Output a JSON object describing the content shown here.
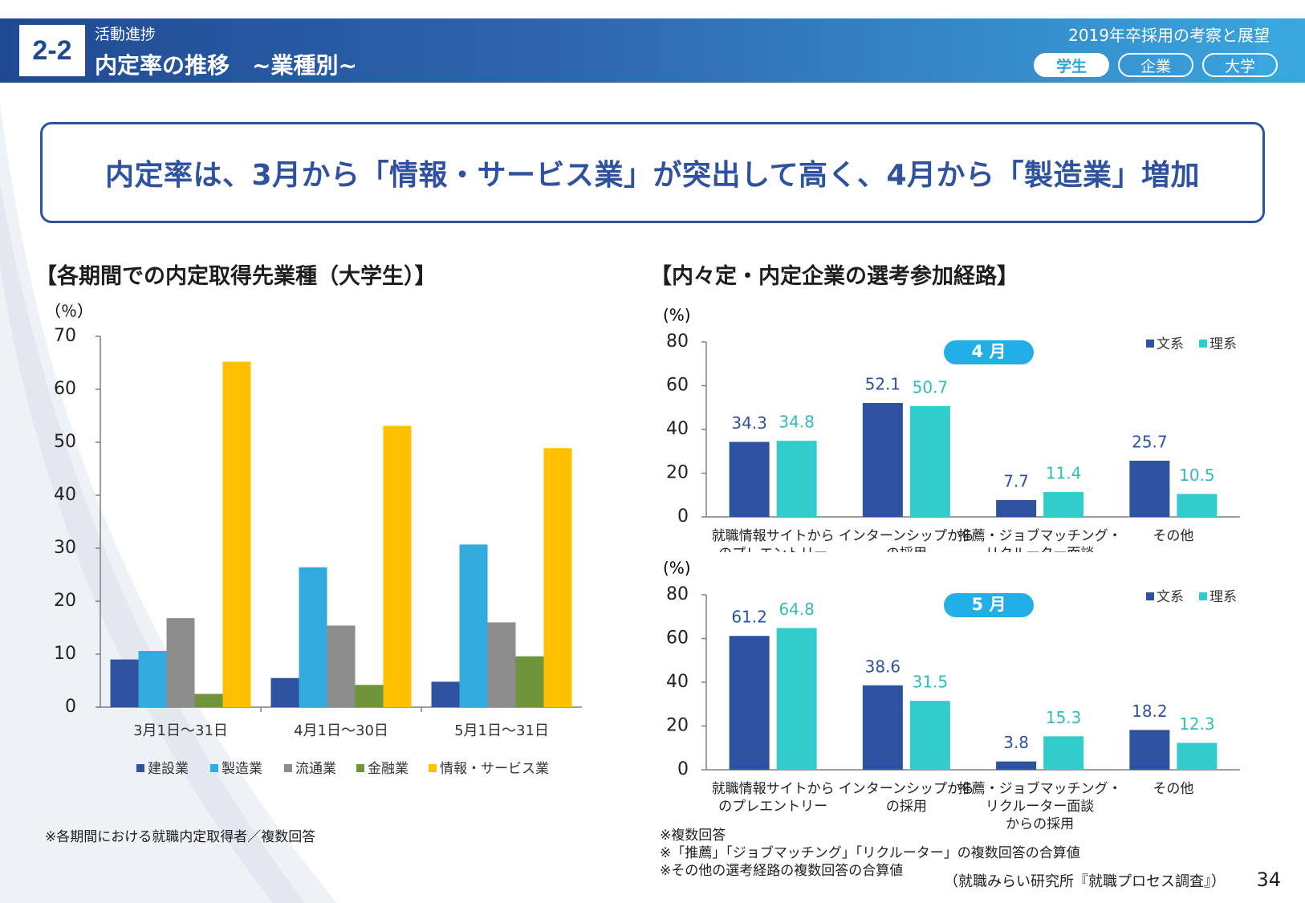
{
  "header": {
    "section_num": "2-2",
    "subtitle": "活動進捗",
    "title": "内定率の推移　~業種別~",
    "report": "2019年卒採用の考察と展望",
    "tabs": [
      "学生",
      "企業",
      "大学"
    ]
  },
  "headline": "内定率は、3月から「情報・サービス業」が突出して高く、4月から「製造業」増加",
  "left_chart_title": "【各期間での内定取得先業種（大学生）】",
  "right_chart_title": "【内々定・内定企業の選考参加経路】",
  "left_note": "※各期間における就職内定取得者／複数回答",
  "right_notes": [
    "※複数回答",
    "※「推薦」「ジョブマッチング」「リクルーター」の複数回答の合算値",
    "※その他の選考経路の複数回答の合算値"
  ],
  "source": "（就職みらい研究所『就職プロセス調査』）",
  "page_number": "34",
  "colors": {
    "header_dark": "#1f4a93",
    "header_light": "#3aa6de",
    "headline": "#2f52a0",
    "bunkei": "#2f52a0",
    "rikei": "#33cccc"
  },
  "chart_data": [
    {
      "type": "bar",
      "title": "【各期間での内定取得先業種（大学生）】",
      "ylabel": "（％）",
      "xlabel": "",
      "ylim": [
        0,
        70
      ],
      "yticks": [
        0,
        10,
        20,
        30,
        40,
        50,
        60,
        70
      ],
      "categories": [
        "3月1日～31日",
        "4月1日～30日",
        "5月1日～31日"
      ],
      "legend_position": "bottom",
      "series": [
        {
          "name": "建設業",
          "color": "#2f52a0",
          "values": [
            9.0,
            5.5,
            4.8
          ]
        },
        {
          "name": "製造業",
          "color": "#33aadd",
          "values": [
            10.6,
            26.4,
            30.7
          ]
        },
        {
          "name": "流通業",
          "color": "#8c8c8c",
          "values": [
            16.8,
            15.4,
            16.0
          ]
        },
        {
          "name": "金融業",
          "color": "#70943a",
          "values": [
            2.5,
            4.2,
            9.6
          ]
        },
        {
          "name": "情報・サービス業",
          "color": "#ffc000",
          "values": [
            65.2,
            53.1,
            48.9
          ]
        }
      ]
    },
    {
      "type": "bar",
      "title": "4 月",
      "ylabel": "(%)",
      "ylim": [
        0,
        80
      ],
      "yticks": [
        0,
        20,
        40,
        60,
        80
      ],
      "categories": [
        [
          "就職情報サイトから",
          "のプレエントリー"
        ],
        [
          "インターンシップから",
          "の採用"
        ],
        [
          "推薦・ジョブマッチング・",
          "リクルーター面談",
          "からの採用"
        ],
        [
          "その他"
        ]
      ],
      "legend_position": "top-right",
      "series": [
        {
          "name": "文系",
          "color": "#2f52a0",
          "label_color": "#2f52a0",
          "values": [
            34.3,
            52.1,
            7.7,
            25.7
          ],
          "labels": [
            "34.3",
            "52.1",
            "7.7",
            "25.7"
          ]
        },
        {
          "name": "理系",
          "color": "#33cccc",
          "label_color": "#33bbbb",
          "values": [
            34.8,
            50.7,
            11.4,
            10.5
          ],
          "labels": [
            "34.8",
            "50.7",
            "11.4",
            "10.5"
          ]
        }
      ]
    },
    {
      "type": "bar",
      "title": "5 月",
      "ylabel": "(%)",
      "ylim": [
        0,
        80
      ],
      "yticks": [
        0,
        20,
        40,
        60,
        80
      ],
      "categories": [
        [
          "就職情報サイトから",
          "のプレエントリー"
        ],
        [
          "インターンシップから",
          "の採用"
        ],
        [
          "推薦・ジョブマッチング・",
          "リクルーター面談",
          "からの採用"
        ],
        [
          "その他"
        ]
      ],
      "legend_position": "top-right",
      "series": [
        {
          "name": "文系",
          "color": "#2f52a0",
          "label_color": "#2f52a0",
          "values": [
            61.2,
            38.6,
            3.8,
            18.2
          ],
          "labels": [
            "61.2",
            "38.6",
            "3.8",
            "18.2"
          ]
        },
        {
          "name": "理系",
          "color": "#33cccc",
          "label_color": "#33bbbb",
          "values": [
            64.8,
            31.5,
            15.3,
            12.3
          ],
          "labels": [
            "64.8",
            "31.5",
            "15.3",
            "12.3"
          ]
        }
      ]
    }
  ]
}
